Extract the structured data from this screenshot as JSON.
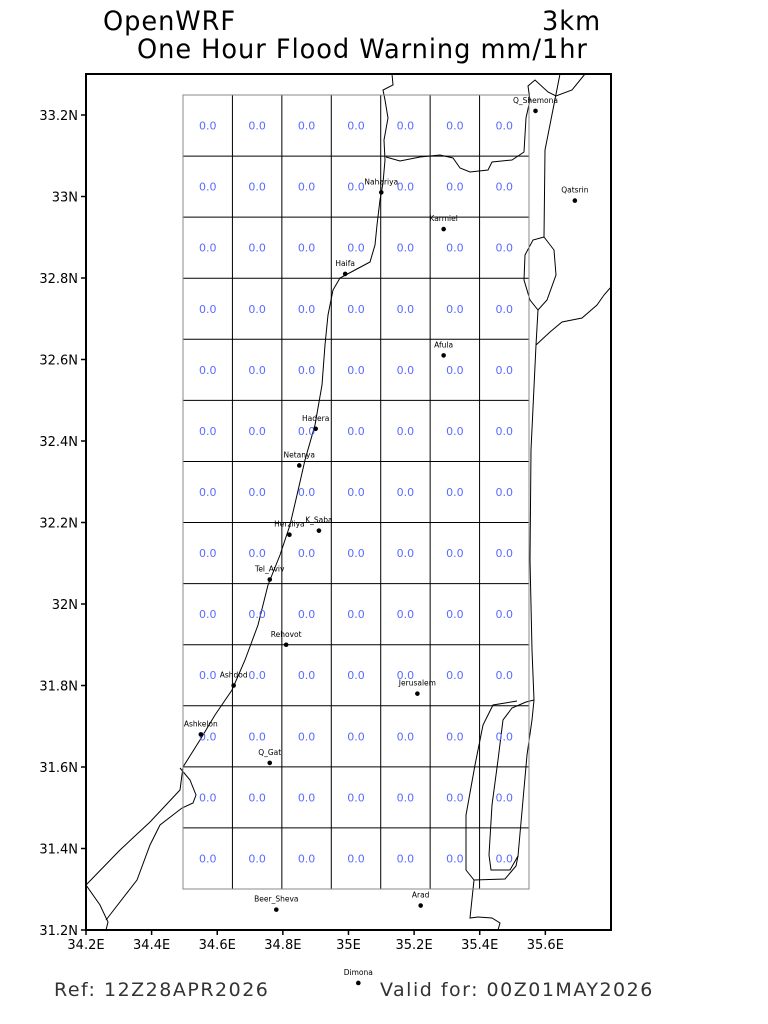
{
  "header": {
    "model": "OpenWRF",
    "resolution": "3km",
    "title": "One Hour Flood Warning mm/1hr"
  },
  "footer": {
    "ref": "Ref: 12Z28APR2026",
    "valid": "Valid for: 00Z01MAY2026"
  },
  "map": {
    "lon_range": [
      34.2,
      35.8
    ],
    "lat_range": [
      31.2,
      33.3
    ],
    "lon_ticks": [
      "34.2E",
      "34.4E",
      "34.6E",
      "34.8E",
      "35E",
      "35.2E",
      "35.4E",
      "35.6E"
    ],
    "lat_ticks": [
      "31.2N",
      "31.4N",
      "31.6N",
      "31.8N",
      "32N",
      "32.2N",
      "32.4N",
      "32.6N",
      "32.8N",
      "33N",
      "33.2N"
    ],
    "value_color": "#5a6cff",
    "grid_rows": 13,
    "grid_cols": 7,
    "values": [
      [
        "0.0",
        "0.0",
        "0.0",
        "0.0",
        "0.0",
        "0.0",
        "0.0"
      ],
      [
        "0.0",
        "0.0",
        "0.0",
        "0.0",
        "0.0",
        "0.0",
        "0.0"
      ],
      [
        "0.0",
        "0.0",
        "0.0",
        "0.0",
        "0.0",
        "0.0",
        "0.0"
      ],
      [
        "0.0",
        "0.0",
        "0.0",
        "0.0",
        "0.0",
        "0.0",
        "0.0"
      ],
      [
        "0.0",
        "0.0",
        "0.0",
        "0.0",
        "0.0",
        "0.0",
        "0.0"
      ],
      [
        "0.0",
        "0.0",
        "0.0",
        "0.0",
        "0.0",
        "0.0",
        "0.0"
      ],
      [
        "0.0",
        "0.0",
        "0.0",
        "0.0",
        "0.0",
        "0.0",
        "0.0"
      ],
      [
        "0.0",
        "0.0",
        "0.0",
        "0.0",
        "0.0",
        "0.0",
        "0.0"
      ],
      [
        "0.0",
        "0.0",
        "0.0",
        "0.0",
        "0.0",
        "0.0",
        "0.0"
      ],
      [
        "0.0",
        "0.0",
        "0.0",
        "0.0",
        "0.0",
        "0.0",
        "0.0"
      ],
      [
        "0.0",
        "0.0",
        "0.0",
        "0.0",
        "0.0",
        "0.0",
        "0.0"
      ],
      [
        "0.0",
        "0.0",
        "0.0",
        "0.0",
        "0.0",
        "0.0",
        "0.0"
      ],
      [
        "0.0",
        "0.0",
        "0.0",
        "0.0",
        "0.0",
        "0.0",
        "0.0"
      ]
    ],
    "cities": [
      {
        "name": "Q_Shemona",
        "lon": 35.57,
        "lat": 33.21
      },
      {
        "name": "Qatsrin",
        "lon": 35.69,
        "lat": 32.99
      },
      {
        "name": "Nahariya",
        "lon": 35.1,
        "lat": 33.01
      },
      {
        "name": "Karmiel",
        "lon": 35.29,
        "lat": 32.92
      },
      {
        "name": "Haifa",
        "lon": 34.99,
        "lat": 32.81
      },
      {
        "name": "Afula",
        "lon": 35.29,
        "lat": 32.61
      },
      {
        "name": "Hadera",
        "lon": 34.9,
        "lat": 32.43
      },
      {
        "name": "Netanya",
        "lon": 34.85,
        "lat": 32.34
      },
      {
        "name": "Herzliya",
        "lon": 34.82,
        "lat": 32.17
      },
      {
        "name": "K_Saba",
        "lon": 34.91,
        "lat": 32.18
      },
      {
        "name": "Tel_Aviv",
        "lon": 34.76,
        "lat": 32.06
      },
      {
        "name": "Rehovot",
        "lon": 34.81,
        "lat": 31.9
      },
      {
        "name": "Ashdod",
        "lon": 34.65,
        "lat": 31.8
      },
      {
        "name": "Ashkelon",
        "lon": 34.55,
        "lat": 31.68
      },
      {
        "name": "Q_Gat",
        "lon": 34.76,
        "lat": 31.61
      },
      {
        "name": "Jerusalem",
        "lon": 35.21,
        "lat": 31.78
      },
      {
        "name": "Beer_Sheva",
        "lon": 34.78,
        "lat": 31.25
      },
      {
        "name": "Arad",
        "lon": 35.22,
        "lat": 31.26
      },
      {
        "name": "Dimona",
        "lon": 35.03,
        "lat": 31.07
      }
    ]
  }
}
